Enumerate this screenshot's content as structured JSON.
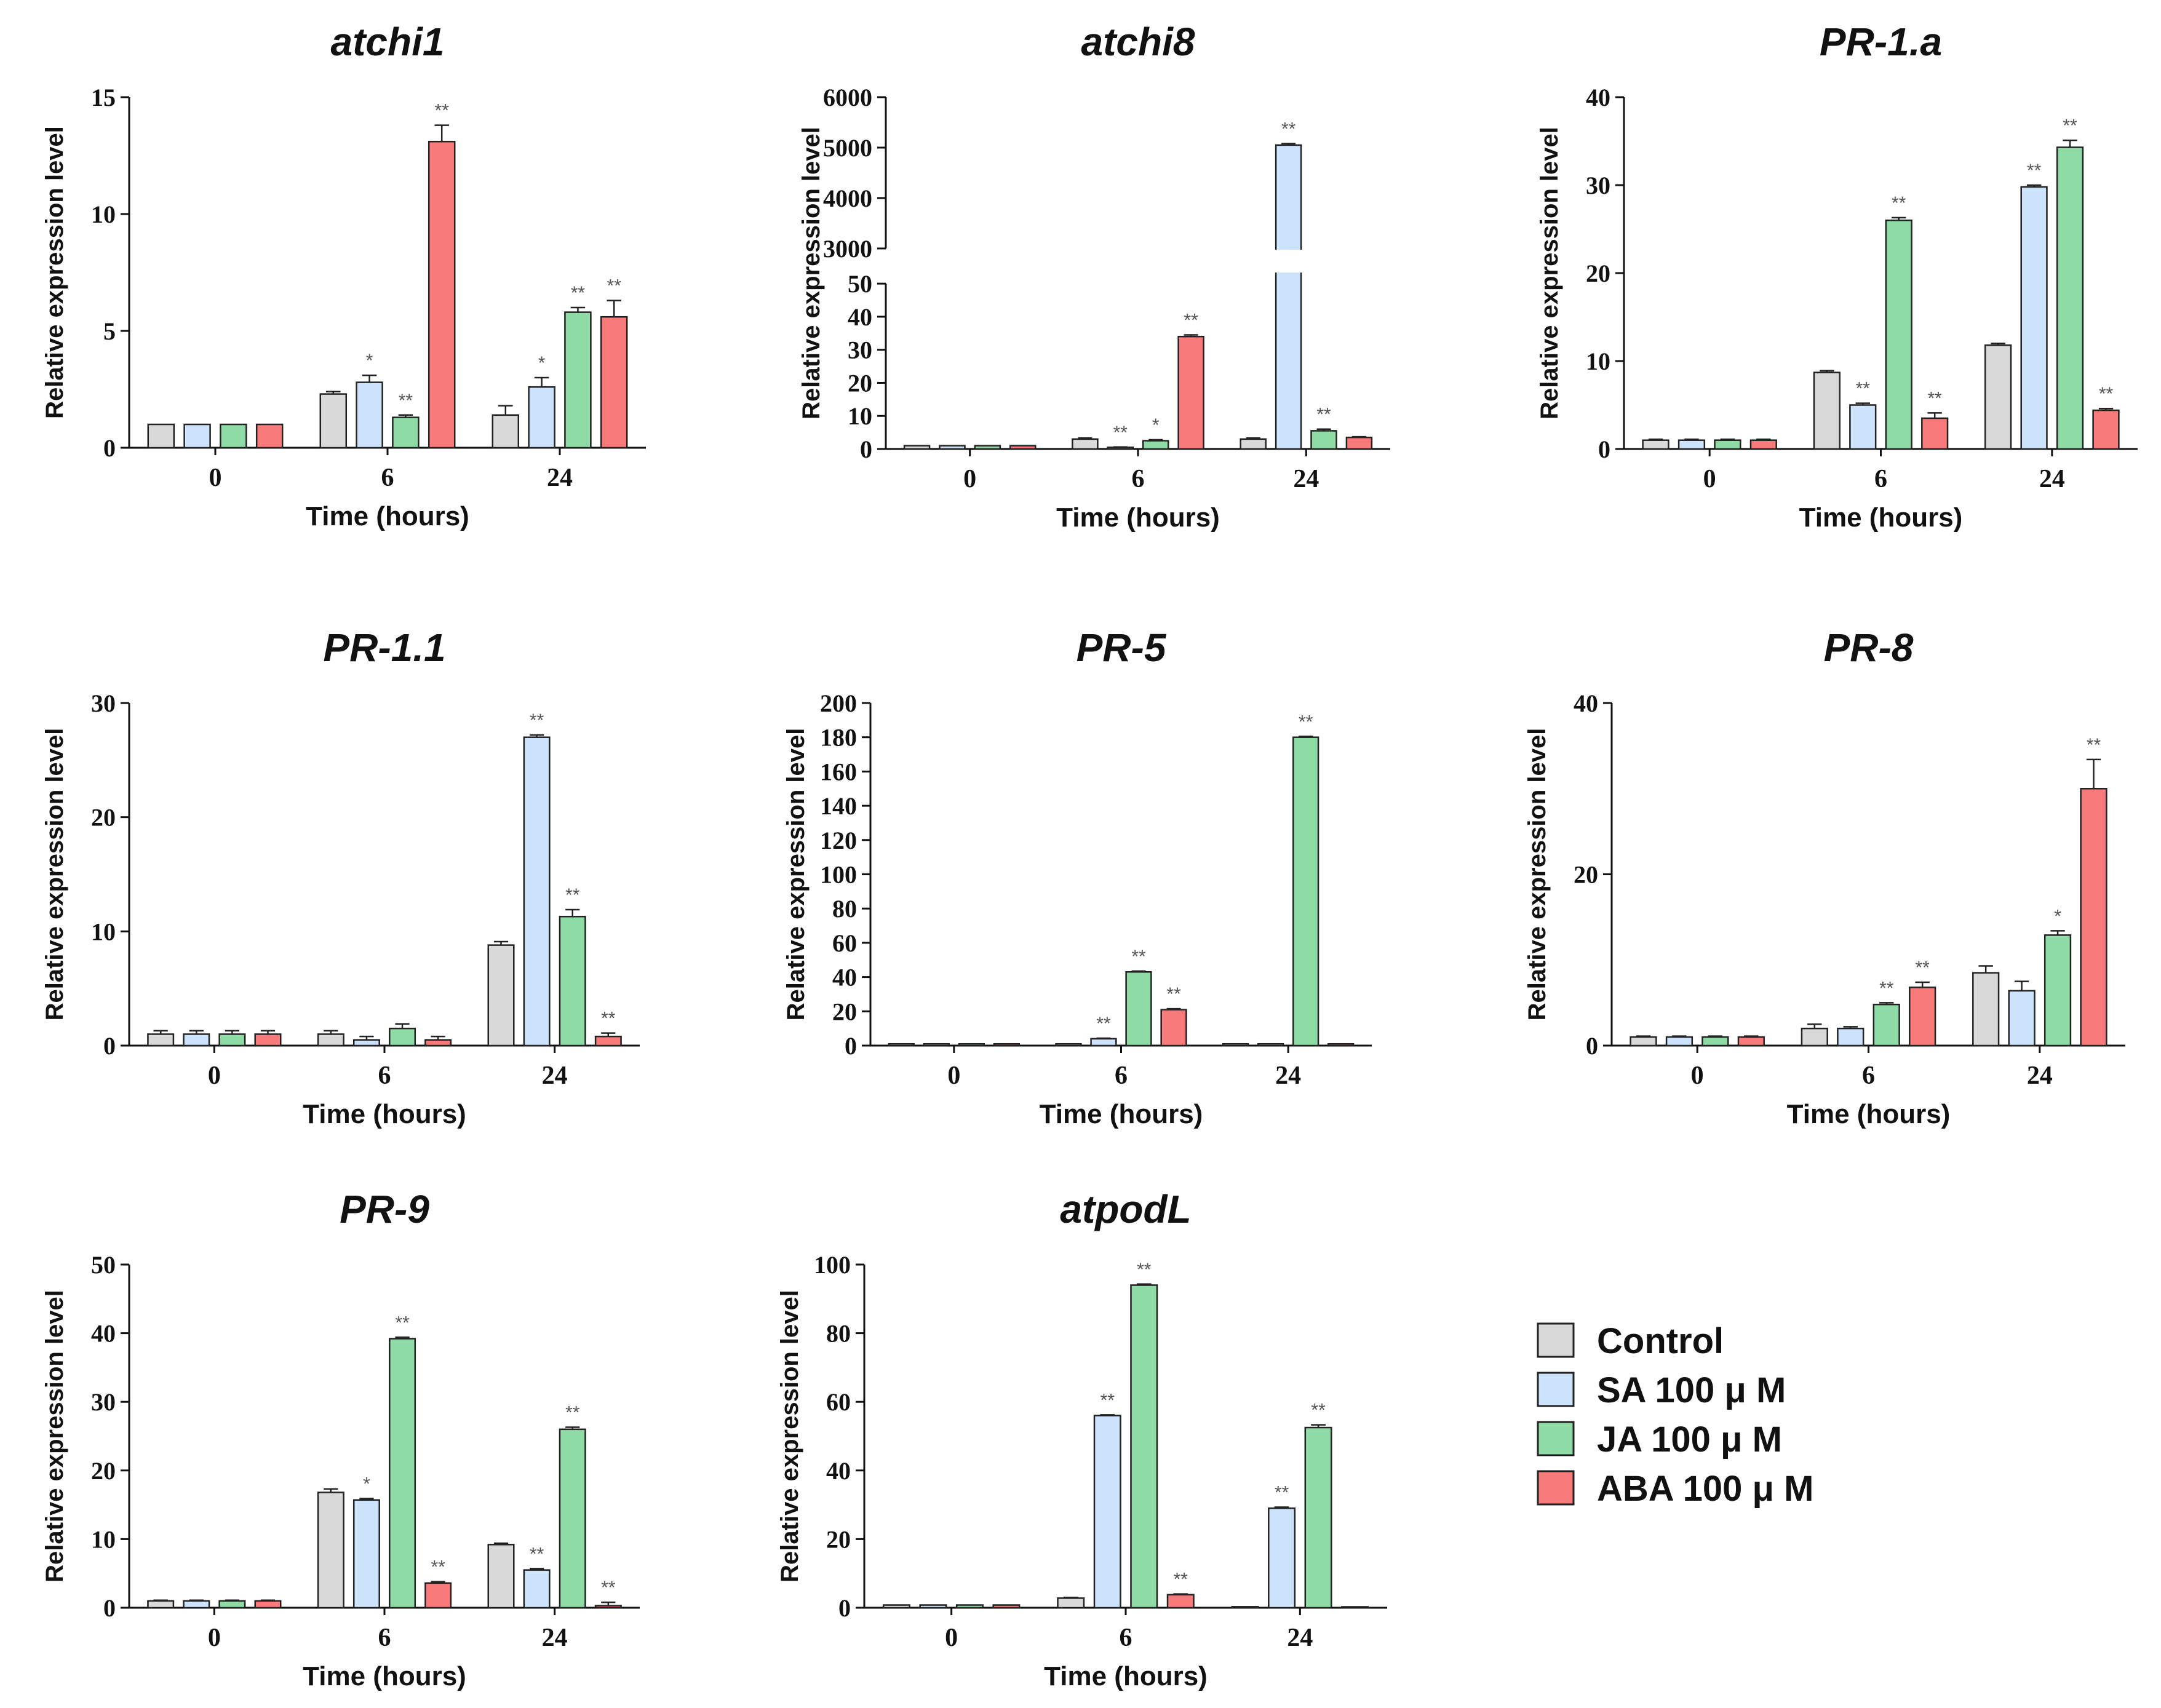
{
  "legend": {
    "position": "bottom-right",
    "entries": [
      {
        "label": "Control",
        "color": "#d9d9d9"
      },
      {
        "label": "SA 100 μ M",
        "color": "#cce3fb"
      },
      {
        "label": "JA 100 μ M",
        "color": "#8edba6"
      },
      {
        "label": "ABA 100 μ M",
        "color": "#f87a7a"
      }
    ]
  },
  "chart_data": [
    {
      "type": "bar",
      "title": "atchi1",
      "xlabel": "Time (hours)",
      "ylabel": "Relative expression level",
      "categories": [
        "0",
        "6",
        "24"
      ],
      "ylim": [
        0,
        15
      ],
      "yticks": [
        0,
        5,
        10,
        15
      ],
      "series": [
        {
          "name": "Control",
          "values": [
            1,
            2.3,
            1.4
          ],
          "errors": [
            0,
            0.1,
            0.4
          ],
          "sig": [
            "",
            "",
            ""
          ]
        },
        {
          "name": "SA 100 μ M",
          "values": [
            1,
            2.8,
            2.6
          ],
          "errors": [
            0,
            0.3,
            0.4
          ],
          "sig": [
            "",
            "*",
            "*"
          ]
        },
        {
          "name": "JA 100 μ M",
          "values": [
            1,
            1.3,
            5.8
          ],
          "errors": [
            0,
            0.1,
            0.2
          ],
          "sig": [
            "",
            "**",
            "**"
          ]
        },
        {
          "name": "ABA 100 μ M",
          "values": [
            1,
            13.1,
            5.6
          ],
          "errors": [
            0,
            0.7,
            0.7
          ],
          "sig": [
            "",
            "**",
            "**"
          ]
        }
      ]
    },
    {
      "type": "bar",
      "title": "atchi8",
      "xlabel": "Time (hours)",
      "ylabel": "Relative expression level",
      "categories": [
        "0",
        "6",
        "24"
      ],
      "ylim": [
        0,
        6000
      ],
      "yticks": [
        0,
        10,
        20,
        30,
        40,
        50,
        3000,
        4000,
        5000,
        6000
      ],
      "axis_break": {
        "lower_max": 50,
        "upper_min": 3000
      },
      "series": [
        {
          "name": "Control",
          "values": [
            1,
            3,
            3
          ],
          "errors": [
            0,
            0.3,
            0.3
          ],
          "sig": [
            "",
            "",
            ""
          ]
        },
        {
          "name": "SA 100 μ M",
          "values": [
            1,
            0.5,
            5050
          ],
          "errors": [
            0,
            0.1,
            30
          ],
          "sig": [
            "",
            "**",
            "**"
          ]
        },
        {
          "name": "JA 100 μ M",
          "values": [
            1,
            2.5,
            5.5
          ],
          "errors": [
            0,
            0.3,
            0.5
          ],
          "sig": [
            "",
            "*",
            "**"
          ]
        },
        {
          "name": "ABA 100 μ M",
          "values": [
            1,
            34,
            3.5
          ],
          "errors": [
            0,
            0.5,
            0.2
          ],
          "sig": [
            "",
            "**",
            ""
          ]
        }
      ]
    },
    {
      "type": "bar",
      "title": "PR-1.a",
      "xlabel": "Time (hours)",
      "ylabel": "Relative expression level",
      "categories": [
        "0",
        "6",
        "24"
      ],
      "ylim": [
        0,
        40
      ],
      "yticks": [
        0,
        10,
        20,
        30,
        40
      ],
      "series": [
        {
          "name": "Control",
          "values": [
            1,
            8.7,
            11.8
          ],
          "errors": [
            0.1,
            0.2,
            0.2
          ],
          "sig": [
            "",
            "",
            ""
          ]
        },
        {
          "name": "SA 100 μ M",
          "values": [
            1,
            5,
            29.8
          ],
          "errors": [
            0.1,
            0.2,
            0.2
          ],
          "sig": [
            "",
            "**",
            "**"
          ]
        },
        {
          "name": "JA 100 μ M",
          "values": [
            1,
            26,
            34.3
          ],
          "errors": [
            0.1,
            0.3,
            0.8
          ],
          "sig": [
            "",
            "**",
            "**"
          ]
        },
        {
          "name": "ABA 100 μ M",
          "values": [
            1,
            3.5,
            4.4
          ],
          "errors": [
            0.1,
            0.6,
            0.2
          ],
          "sig": [
            "",
            "**",
            "**"
          ]
        }
      ]
    },
    {
      "type": "bar",
      "title": "PR-1.1",
      "xlabel": "Time (hours)",
      "ylabel": "Relative expression level",
      "categories": [
        "0",
        "6",
        "24"
      ],
      "ylim": [
        0,
        30
      ],
      "yticks": [
        0,
        10,
        20,
        30
      ],
      "series": [
        {
          "name": "Control",
          "values": [
            1,
            1,
            8.8
          ],
          "errors": [
            0.3,
            0.3,
            0.3
          ],
          "sig": [
            "",
            "",
            ""
          ]
        },
        {
          "name": "SA 100 μ M",
          "values": [
            1,
            0.5,
            27
          ],
          "errors": [
            0.3,
            0.3,
            0.2
          ],
          "sig": [
            "",
            "",
            "**"
          ]
        },
        {
          "name": "JA 100 μ M",
          "values": [
            1,
            1.5,
            11.3
          ],
          "errors": [
            0.3,
            0.4,
            0.6
          ],
          "sig": [
            "",
            "",
            "**"
          ]
        },
        {
          "name": "ABA 100 μ M",
          "values": [
            1,
            0.5,
            0.8
          ],
          "errors": [
            0.3,
            0.3,
            0.3
          ],
          "sig": [
            "",
            "",
            "**"
          ]
        }
      ]
    },
    {
      "type": "bar",
      "title": "PR-5",
      "xlabel": "Time (hours)",
      "ylabel": "Relative expression level",
      "categories": [
        "0",
        "6",
        "24"
      ],
      "ylim": [
        0,
        200
      ],
      "yticks": [
        0,
        20,
        40,
        60,
        80,
        100,
        120,
        140,
        160,
        180,
        200
      ],
      "series": [
        {
          "name": "Control",
          "values": [
            1,
            1,
            1
          ],
          "errors": [
            0,
            0,
            0
          ],
          "sig": [
            "",
            "",
            ""
          ]
        },
        {
          "name": "SA 100 μ M",
          "values": [
            1,
            4,
            1
          ],
          "errors": [
            0,
            0.3,
            0
          ],
          "sig": [
            "",
            "**",
            ""
          ]
        },
        {
          "name": "JA 100 μ M",
          "values": [
            1,
            43,
            180
          ],
          "errors": [
            0,
            0.5,
            0.5
          ],
          "sig": [
            "",
            "**",
            "**"
          ]
        },
        {
          "name": "ABA 100 μ M",
          "values": [
            1,
            21,
            1
          ],
          "errors": [
            0,
            0.5,
            0
          ],
          "sig": [
            "",
            "**",
            ""
          ]
        }
      ]
    },
    {
      "type": "bar",
      "title": "PR-8",
      "xlabel": "Time (hours)",
      "ylabel": "Relative expression level",
      "categories": [
        "0",
        "6",
        "24"
      ],
      "ylim": [
        0,
        40
      ],
      "yticks": [
        0,
        20,
        40
      ],
      "series": [
        {
          "name": "Control",
          "values": [
            1,
            2,
            8.5
          ],
          "errors": [
            0.1,
            0.5,
            0.8
          ],
          "sig": [
            "",
            "",
            ""
          ]
        },
        {
          "name": "SA 100 μ M",
          "values": [
            1,
            2,
            6.4
          ],
          "errors": [
            0.1,
            0.2,
            1.1
          ],
          "sig": [
            "",
            "",
            ""
          ]
        },
        {
          "name": "JA 100 μ M",
          "values": [
            1,
            4.8,
            12.9
          ],
          "errors": [
            0.1,
            0.2,
            0.5
          ],
          "sig": [
            "",
            "**",
            "*"
          ]
        },
        {
          "name": "ABA 100 μ M",
          "values": [
            1,
            6.8,
            30
          ],
          "errors": [
            0.1,
            0.6,
            3.4
          ],
          "sig": [
            "",
            "**",
            "**"
          ]
        }
      ]
    },
    {
      "type": "bar",
      "title": "PR-9",
      "xlabel": "Time (hours)",
      "ylabel": "Relative expression level",
      "categories": [
        "0",
        "6",
        "24"
      ],
      "ylim": [
        0,
        50
      ],
      "yticks": [
        0,
        10,
        20,
        30,
        40,
        50
      ],
      "series": [
        {
          "name": "Control",
          "values": [
            1,
            16.8,
            9.2
          ],
          "errors": [
            0.1,
            0.5,
            0.2
          ],
          "sig": [
            "",
            "",
            ""
          ]
        },
        {
          "name": "SA 100 μ M",
          "values": [
            1,
            15.7,
            5.5
          ],
          "errors": [
            0.1,
            0.2,
            0.2
          ],
          "sig": [
            "",
            "*",
            "**"
          ]
        },
        {
          "name": "JA 100 μ M",
          "values": [
            1,
            39.2,
            26
          ],
          "errors": [
            0.1,
            0.2,
            0.3
          ],
          "sig": [
            "",
            "**",
            "**"
          ]
        },
        {
          "name": "ABA 100 μ M",
          "values": [
            1,
            3.6,
            0.3
          ],
          "errors": [
            0.1,
            0.2,
            0.5
          ],
          "sig": [
            "",
            "**",
            "**"
          ]
        }
      ]
    },
    {
      "type": "bar",
      "title": "atpodL",
      "xlabel": "Time (hours)",
      "ylabel": "Relative expression level",
      "categories": [
        "0",
        "6",
        "24"
      ],
      "ylim": [
        0,
        100
      ],
      "yticks": [
        0,
        20,
        40,
        60,
        80,
        100
      ],
      "series": [
        {
          "name": "Control",
          "values": [
            0.8,
            2.8,
            0.3
          ],
          "errors": [
            0,
            0.2,
            0
          ],
          "sig": [
            "",
            "",
            ""
          ]
        },
        {
          "name": "SA 100 μ M",
          "values": [
            0.8,
            56,
            29
          ],
          "errors": [
            0,
            0.2,
            0.3
          ],
          "sig": [
            "",
            "**",
            "**"
          ]
        },
        {
          "name": "JA 100 μ M",
          "values": [
            0.8,
            94,
            52.5
          ],
          "errors": [
            0,
            0.3,
            0.8
          ],
          "sig": [
            "",
            "**",
            "**"
          ]
        },
        {
          "name": "ABA 100 μ M",
          "values": [
            0.8,
            3.8,
            0
          ],
          "errors": [
            0,
            0.2,
            0
          ],
          "sig": [
            "",
            "**",
            ""
          ]
        }
      ]
    }
  ]
}
